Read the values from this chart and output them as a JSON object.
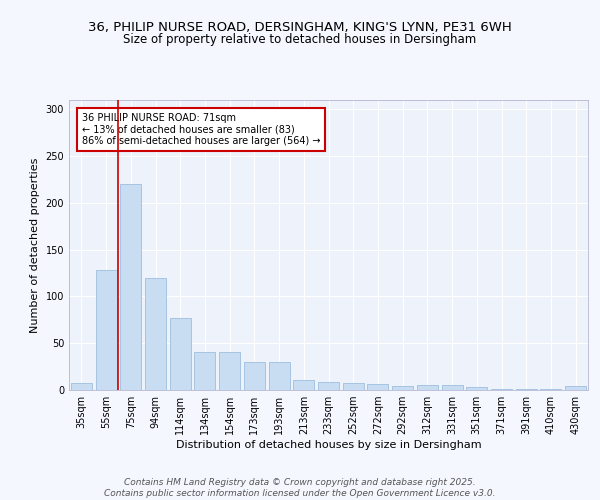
{
  "title_line1": "36, PHILIP NURSE ROAD, DERSINGHAM, KING'S LYNN, PE31 6WH",
  "title_line2": "Size of property relative to detached houses in Dersingham",
  "xlabel": "Distribution of detached houses by size in Dersingham",
  "ylabel": "Number of detached properties",
  "categories": [
    "35sqm",
    "55sqm",
    "75sqm",
    "94sqm",
    "114sqm",
    "134sqm",
    "154sqm",
    "173sqm",
    "193sqm",
    "213sqm",
    "233sqm",
    "252sqm",
    "272sqm",
    "292sqm",
    "312sqm",
    "331sqm",
    "351sqm",
    "371sqm",
    "391sqm",
    "410sqm",
    "430sqm"
  ],
  "values": [
    8,
    128,
    220,
    120,
    77,
    41,
    41,
    30,
    30,
    11,
    9,
    7,
    6,
    4,
    5,
    5,
    3,
    1,
    1,
    1,
    4
  ],
  "bar_color": "#c9ddf2",
  "bar_edge_color": "#9dbfe0",
  "vline_color": "#cc0000",
  "vline_pos": 1.5,
  "annotation_text": "36 PHILIP NURSE ROAD: 71sqm\n← 13% of detached houses are smaller (83)\n86% of semi-detached houses are larger (564) →",
  "annotation_box_edgecolor": "#cc0000",
  "ylim": [
    0,
    310
  ],
  "yticks": [
    0,
    50,
    100,
    150,
    200,
    250,
    300
  ],
  "background_color": "#eef2fb",
  "grid_color": "#ffffff",
  "footer_text": "Contains HM Land Registry data © Crown copyright and database right 2025.\nContains public sector information licensed under the Open Government Licence v3.0.",
  "title_fontsize": 9.5,
  "subtitle_fontsize": 8.5,
  "axis_label_fontsize": 8,
  "tick_fontsize": 7,
  "annotation_fontsize": 7,
  "footer_fontsize": 6.5
}
